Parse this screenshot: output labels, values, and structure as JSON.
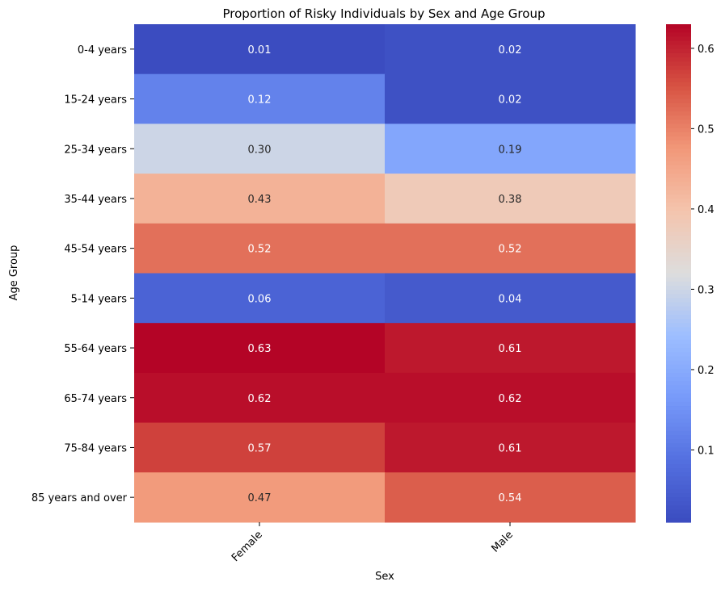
{
  "chart_data": {
    "type": "heatmap",
    "title": "Proportion of Risky Individuals by Sex and Age Group",
    "xlabel": "Sex",
    "ylabel": "Age Group",
    "x_categories": [
      "Female",
      "Male"
    ],
    "y_categories": [
      "0-4 years",
      "15-24 years",
      "25-34 years",
      "35-44 years",
      "45-54 years",
      "5-14 years",
      "55-64 years",
      "65-74 years",
      "75-84 years",
      "85 years and over"
    ],
    "values": [
      [
        0.01,
        0.02
      ],
      [
        0.12,
        0.02
      ],
      [
        0.3,
        0.19
      ],
      [
        0.43,
        0.38
      ],
      [
        0.52,
        0.52
      ],
      [
        0.06,
        0.04
      ],
      [
        0.63,
        0.61
      ],
      [
        0.62,
        0.62
      ],
      [
        0.57,
        0.61
      ],
      [
        0.47,
        0.54
      ]
    ],
    "value_labels": [
      [
        "0.01",
        "0.02"
      ],
      [
        "0.12",
        "0.02"
      ],
      [
        "0.30",
        "0.19"
      ],
      [
        "0.43",
        "0.38"
      ],
      [
        "0.52",
        "0.52"
      ],
      [
        "0.06",
        "0.04"
      ],
      [
        "0.63",
        "0.61"
      ],
      [
        "0.62",
        "0.62"
      ],
      [
        "0.57",
        "0.61"
      ],
      [
        "0.47",
        "0.54"
      ]
    ],
    "colormap": "coolwarm",
    "colorbar_range": [
      0.01,
      0.63
    ],
    "colorbar_ticks": [
      0.1,
      0.2,
      0.3,
      0.4,
      0.5,
      0.6
    ],
    "colorbar_tick_labels": [
      "0.1",
      "0.2",
      "0.3",
      "0.4",
      "0.5",
      "0.6"
    ],
    "x_tick_rotation": 45,
    "colors": {
      "low": "#3b4cc0",
      "mid": "#dddddd",
      "high": "#b40426"
    }
  }
}
